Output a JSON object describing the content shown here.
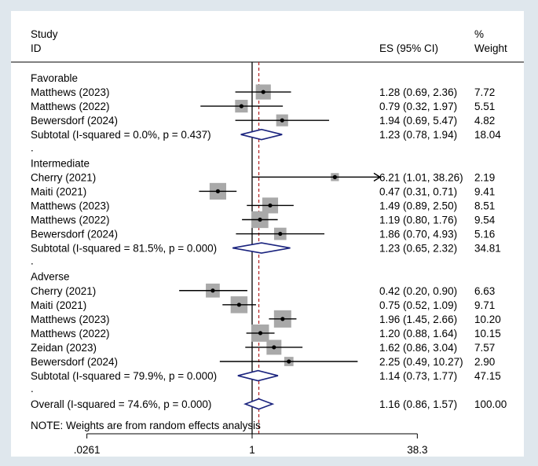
{
  "chart_data": {
    "type": "forest",
    "header": {
      "study_line1": "Study",
      "study_line2": "ID",
      "es_label": "ES (95% CI)",
      "weight_line1": "%",
      "weight_line2": "Weight"
    },
    "x_scale": "log",
    "null_value": 1,
    "overall_es": 1.16,
    "xticks": [
      {
        "value": 0.0261,
        "label": ".0261"
      },
      {
        "value": 1,
        "label": "1"
      },
      {
        "value": 38.3,
        "label": "38.3"
      }
    ],
    "rows": [
      {
        "type": "group",
        "label": "Favorable"
      },
      {
        "type": "study",
        "label": "Matthews (2023)",
        "es": 1.28,
        "lo": 0.69,
        "hi": 2.36,
        "es_text": "1.28 (0.69, 2.36)",
        "weight": 7.72,
        "weight_text": "7.72"
      },
      {
        "type": "study",
        "label": "Matthews (2022)",
        "es": 0.79,
        "lo": 0.32,
        "hi": 1.97,
        "es_text": "0.79 (0.32, 1.97)",
        "weight": 5.51,
        "weight_text": "5.51"
      },
      {
        "type": "study",
        "label": "Bewersdorf (2024)",
        "es": 1.94,
        "lo": 0.69,
        "hi": 5.47,
        "es_text": "1.94 (0.69, 5.47)",
        "weight": 4.82,
        "weight_text": "4.82"
      },
      {
        "type": "subtotal",
        "label": "Subtotal  (I-squared = 0.0%, p = 0.437)",
        "es": 1.23,
        "lo": 0.78,
        "hi": 1.94,
        "es_text": "1.23 (0.78, 1.94)",
        "weight_text": "18.04"
      },
      {
        "type": "dot",
        "label": "."
      },
      {
        "type": "group",
        "label": "Intermediate"
      },
      {
        "type": "study",
        "label": "Cherry (2021)",
        "es": 6.21,
        "lo": 1.01,
        "hi": 38.26,
        "es_text": "6.21 (1.01, 38.26)",
        "weight": 2.19,
        "weight_text": "2.19",
        "arrow": true
      },
      {
        "type": "study",
        "label": "Maiti (2021)",
        "es": 0.47,
        "lo": 0.31,
        "hi": 0.71,
        "es_text": "0.47 (0.31, 0.71)",
        "weight": 9.41,
        "weight_text": "9.41"
      },
      {
        "type": "study",
        "label": "Matthews (2023)",
        "es": 1.49,
        "lo": 0.89,
        "hi": 2.5,
        "es_text": "1.49 (0.89, 2.50)",
        "weight": 8.51,
        "weight_text": "8.51"
      },
      {
        "type": "study",
        "label": "Matthews (2022)",
        "es": 1.19,
        "lo": 0.8,
        "hi": 1.76,
        "es_text": "1.19 (0.80, 1.76)",
        "weight": 9.54,
        "weight_text": "9.54"
      },
      {
        "type": "study",
        "label": "Bewersdorf (2024)",
        "es": 1.86,
        "lo": 0.7,
        "hi": 4.93,
        "es_text": "1.86 (0.70, 4.93)",
        "weight": 5.16,
        "weight_text": "5.16"
      },
      {
        "type": "subtotal",
        "label": "Subtotal  (I-squared = 81.5%, p = 0.000)",
        "es": 1.23,
        "lo": 0.65,
        "hi": 2.32,
        "es_text": "1.23 (0.65, 2.32)",
        "weight_text": "34.81"
      },
      {
        "type": "dot",
        "label": "."
      },
      {
        "type": "group",
        "label": "Adverse"
      },
      {
        "type": "study",
        "label": "Cherry (2021)",
        "es": 0.42,
        "lo": 0.2,
        "hi": 0.9,
        "es_text": "0.42 (0.20, 0.90)",
        "weight": 6.63,
        "weight_text": "6.63"
      },
      {
        "type": "study",
        "label": "Maiti (2021)",
        "es": 0.75,
        "lo": 0.52,
        "hi": 1.09,
        "es_text": "0.75 (0.52, 1.09)",
        "weight": 9.71,
        "weight_text": "9.71"
      },
      {
        "type": "study",
        "label": "Matthews (2023)",
        "es": 1.96,
        "lo": 1.45,
        "hi": 2.66,
        "es_text": "1.96 (1.45, 2.66)",
        "weight": 10.2,
        "weight_text": "10.20"
      },
      {
        "type": "study",
        "label": "Matthews (2022)",
        "es": 1.2,
        "lo": 0.88,
        "hi": 1.64,
        "es_text": "1.20 (0.88, 1.64)",
        "weight": 10.15,
        "weight_text": "10.15"
      },
      {
        "type": "study",
        "label": "Zeidan (2023)",
        "es": 1.62,
        "lo": 0.86,
        "hi": 3.04,
        "es_text": "1.62 (0.86, 3.04)",
        "weight": 7.57,
        "weight_text": "7.57"
      },
      {
        "type": "study",
        "label": "Bewersdorf (2024)",
        "es": 2.25,
        "lo": 0.49,
        "hi": 10.27,
        "es_text": "2.25 (0.49, 10.27)",
        "weight": 2.9,
        "weight_text": "2.90"
      },
      {
        "type": "subtotal",
        "label": "Subtotal  (I-squared = 79.9%, p = 0.000)",
        "es": 1.14,
        "lo": 0.73,
        "hi": 1.77,
        "es_text": "1.14 (0.73, 1.77)",
        "weight_text": "47.15"
      },
      {
        "type": "dot",
        "label": "."
      },
      {
        "type": "overall",
        "label": "Overall  (I-squared = 74.6%, p = 0.000)",
        "es": 1.16,
        "lo": 0.86,
        "hi": 1.57,
        "es_text": "1.16 (0.86, 1.57)",
        "weight_text": "100.00"
      }
    ],
    "note": "NOTE: Weights are from random effects analysis",
    "colors": {
      "diamond": "#1a237e",
      "box": "#a9a9a9",
      "overall_line": "#b22222",
      "background": "#dfe7ed"
    }
  }
}
